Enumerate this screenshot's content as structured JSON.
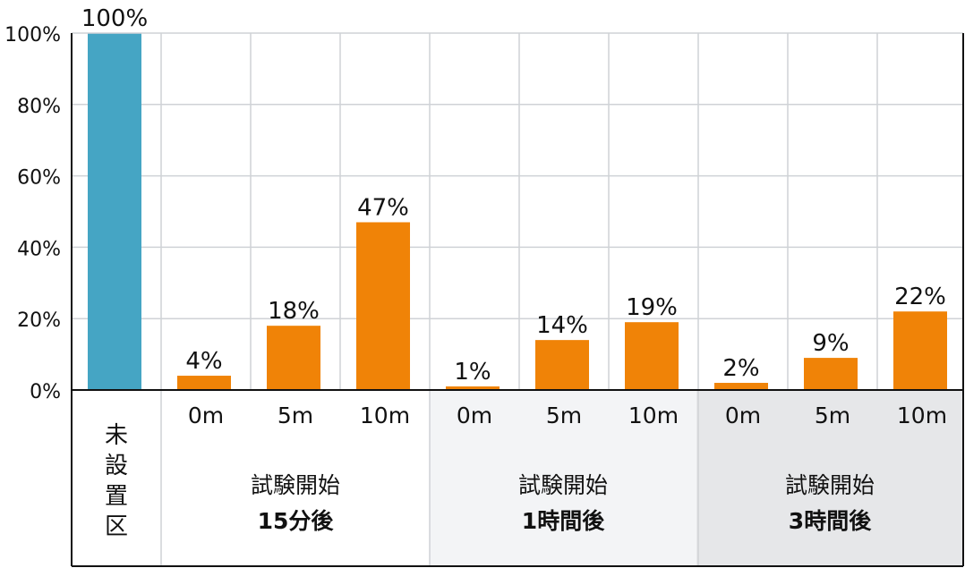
{
  "chart_data": {
    "type": "bar",
    "ylim": [
      0,
      100
    ],
    "yticks": [
      "0%",
      "20%",
      "40%",
      "60%",
      "80%",
      "100%"
    ],
    "ytick_values": [
      0,
      20,
      40,
      60,
      80,
      100
    ],
    "categories": [
      "未設置区",
      "0m",
      "5m",
      "10m",
      "0m",
      "5m",
      "10m",
      "0m",
      "5m",
      "10m"
    ],
    "values": [
      100,
      4,
      18,
      47,
      1,
      14,
      19,
      2,
      9,
      22
    ],
    "data_labels": [
      "100%",
      "4%",
      "18%",
      "47%",
      "1%",
      "14%",
      "19%",
      "2%",
      "9%",
      "22%"
    ],
    "groups": [
      {
        "line1": "試験開始",
        "line2": "15分後",
        "subs": [
          "0m",
          "5m",
          "10m"
        ]
      },
      {
        "line1": "試験開始",
        "line2": "1時間後",
        "subs": [
          "0m",
          "5m",
          "10m"
        ]
      },
      {
        "line1": "試験開始",
        "line2": "3時間後",
        "subs": [
          "0m",
          "5m",
          "10m"
        ]
      }
    ],
    "control_label": "未設置区",
    "colors": {
      "control": "#45a5c4",
      "bars": "#f08307",
      "group2_bg": "#f3f4f6",
      "group3_bg": "#e6e7e9",
      "grid": "#cfd2d6"
    }
  }
}
